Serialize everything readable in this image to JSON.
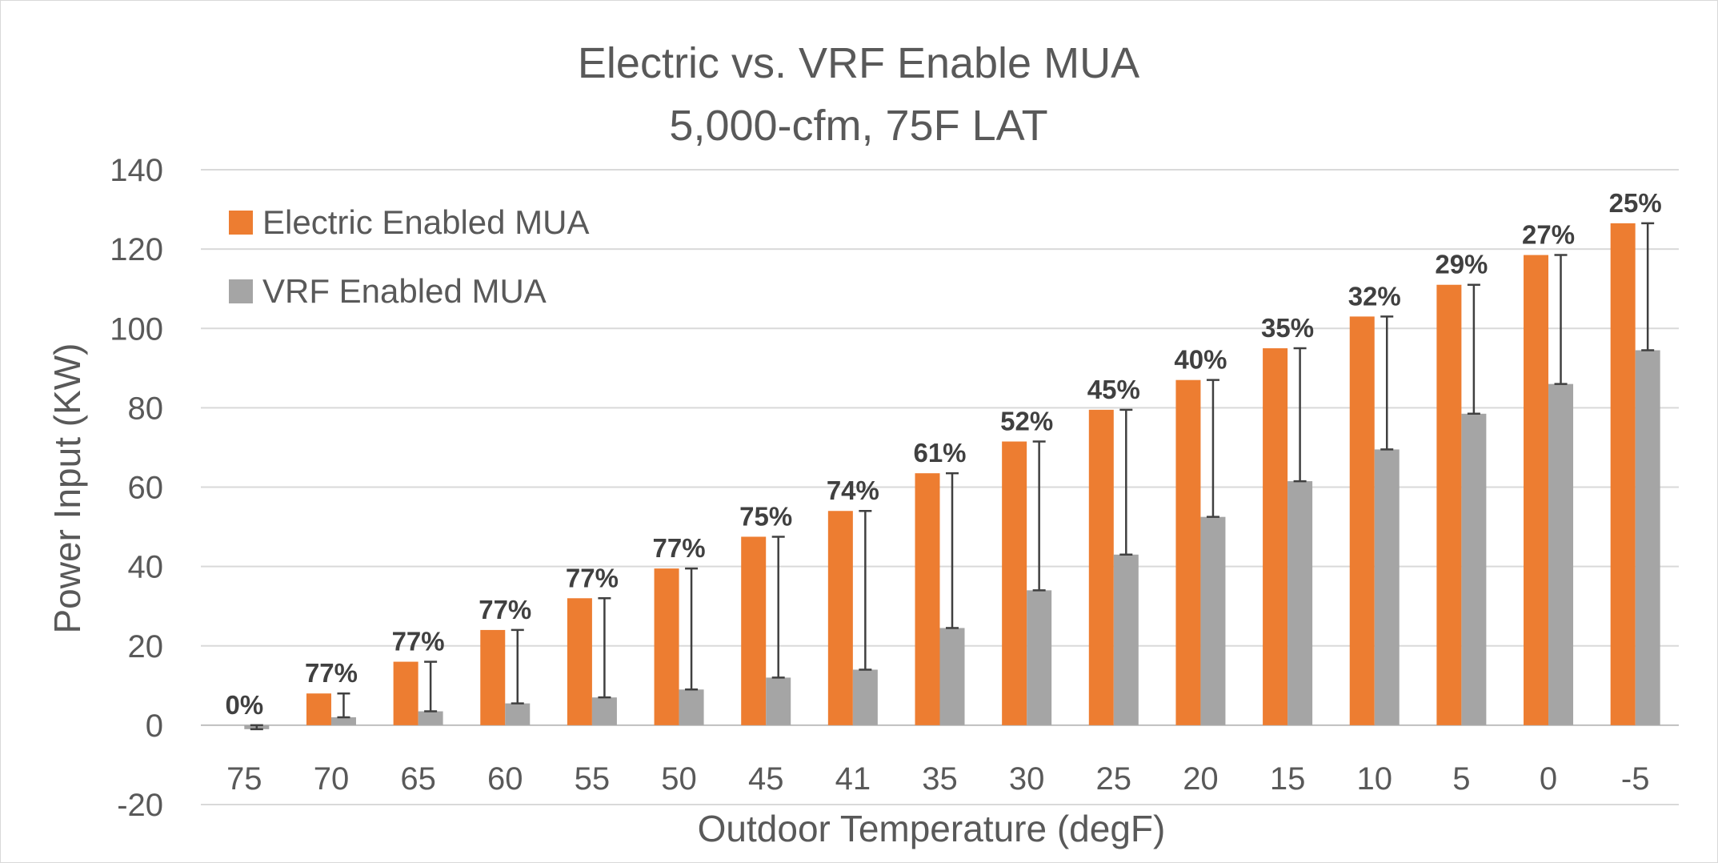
{
  "chart_data": {
    "type": "bar",
    "title": "Electric vs. VRF Enable MUA",
    "subtitle": "5,000-cfm, 75F LAT",
    "xlabel": "Outdoor Temperature (degF)",
    "ylabel": "Power Input (KW)",
    "ylim": [
      -20,
      140
    ],
    "yticks": [
      "-20",
      "0",
      "20",
      "40",
      "60",
      "80",
      "100",
      "120",
      "140"
    ],
    "categories": [
      "75",
      "70",
      "65",
      "60",
      "55",
      "50",
      "45",
      "41",
      "35",
      "30",
      "25",
      "20",
      "15",
      "10",
      "5",
      "0",
      "-5"
    ],
    "series": [
      {
        "name": "Electric Enabled MUA",
        "color": "#ed7d31",
        "values": [
          0,
          8,
          16,
          24,
          32,
          39.5,
          47.5,
          54,
          63.5,
          71.5,
          79.5,
          87,
          95,
          103,
          111,
          118.5,
          126.5
        ]
      },
      {
        "name": "VRF Enabled MUA",
        "color": "#a5a5a5",
        "values": [
          -1,
          2,
          3.5,
          5.5,
          7,
          9,
          12,
          14,
          24.5,
          34,
          43,
          52.5,
          61.5,
          69.5,
          78.5,
          86,
          94.5
        ]
      }
    ],
    "data_labels": [
      "0%",
      "77%",
      "77%",
      "77%",
      "77%",
      "77%",
      "75%",
      "74%",
      "61%",
      "52%",
      "45%",
      "40%",
      "35%",
      "32%",
      "29%",
      "27%",
      "25%"
    ],
    "error_bars": "range between Electric and VRF values, drawn on the VRF bar",
    "grid": true,
    "legend_position": "top-left"
  }
}
